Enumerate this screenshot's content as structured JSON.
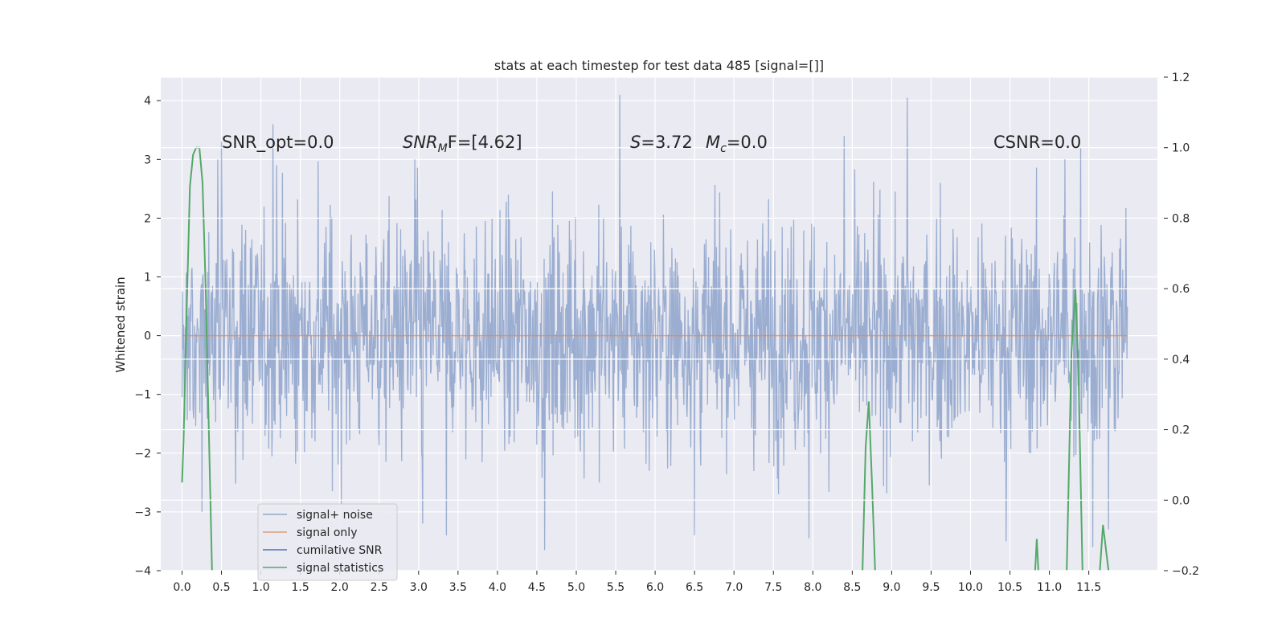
{
  "chart_data": {
    "type": "line",
    "title": "stats at each timestep for test data 485 [signal=[]]",
    "ylabel": "Whitened strain",
    "xlim": [
      -0.27,
      12.37
    ],
    "ylim": [
      -4,
      4.4
    ],
    "y2lim": [
      -0.2,
      1.2
    ],
    "x_ticks": [
      "0.0",
      "0.5",
      "1.0",
      "1.5",
      "2.0",
      "2.5",
      "3.0",
      "3.5",
      "4.0",
      "4.5",
      "5.0",
      "5.5",
      "6.0",
      "6.5",
      "7.0",
      "7.5",
      "8.0",
      "8.5",
      "9.0",
      "9.5",
      "10.0",
      "10.5",
      "11.0",
      "11.5"
    ],
    "y_ticks": [
      "4",
      "3",
      "2",
      "1",
      "0",
      "−1",
      "−2",
      "−3",
      "−4"
    ],
    "y2_ticks": [
      "1.2",
      "1.0",
      "0.8",
      "0.6",
      "0.4",
      "0.2",
      "0.0",
      "−0.2"
    ],
    "annotations": {
      "snr_opt": "SNR_opt=0.0",
      "snr_mf_main": "SNR",
      "snr_mf_sub": "M",
      "snr_mf_rest": "F=[4.62]",
      "s_main": "S",
      "s_rest": "=3.72",
      "mc_main": "M",
      "mc_sub": "c",
      "mc_rest": "=0.0",
      "csnr": "CSNR=0.0"
    },
    "legend": {
      "placement": "lower left",
      "items": [
        "signal+ noise",
        "signal only",
        "cumilative SNR",
        "signal statistics"
      ]
    },
    "series": [
      {
        "name": "signal+ noise",
        "color": "#4c72b0",
        "description_range": [
          -3.7,
          4.1
        ],
        "peaks": [
          [
            0.5,
            3.3
          ],
          [
            0.45,
            3.0
          ],
          [
            1.2,
            2.9
          ],
          [
            1.15,
            3.6
          ],
          [
            2.95,
            3.0
          ],
          [
            4.6,
            3.4
          ],
          [
            5.55,
            4.1
          ],
          [
            6.5,
            3.5
          ],
          [
            8.4,
            3.4
          ],
          [
            9.2,
            4.05
          ],
          [
            11.4,
            3.2
          ],
          [
            11.2,
            3.0
          ],
          [
            4.6,
            -3.65
          ],
          [
            3.35,
            -3.4
          ],
          [
            3.05,
            -3.2
          ],
          [
            0.25,
            -3.0
          ],
          [
            6.5,
            -3.4
          ],
          [
            7.95,
            -3.45
          ],
          [
            10.45,
            -3.5
          ],
          [
            11.55,
            -3.6
          ],
          [
            11.75,
            -3.3
          ]
        ]
      },
      {
        "name": "signal only",
        "color": "#dd8452",
        "x": [
          0.0,
          11.99
        ],
        "y": [
          0.0,
          0.0
        ]
      },
      {
        "name": "signal statistics",
        "color": "#55a868",
        "x": [
          0.0,
          0.02,
          0.06,
          0.1,
          0.14,
          0.18,
          0.22,
          0.26,
          0.3,
          0.34,
          0.38,
          8.63,
          8.67,
          8.71,
          8.75,
          8.79,
          10.82,
          10.84,
          10.86,
          11.22,
          11.28,
          11.33,
          11.37,
          11.42,
          11.64,
          11.68,
          11.75
        ],
        "y": [
          0.05,
          0.17,
          0.55,
          0.89,
          0.98,
          1.0,
          1.0,
          0.9,
          0.6,
          0.2,
          -0.2,
          -0.2,
          0.15,
          0.28,
          0.05,
          -0.2,
          -0.2,
          -0.11,
          -0.2,
          -0.2,
          0.42,
          0.6,
          0.35,
          -0.2,
          -0.2,
          -0.07,
          -0.2
        ]
      }
    ]
  }
}
